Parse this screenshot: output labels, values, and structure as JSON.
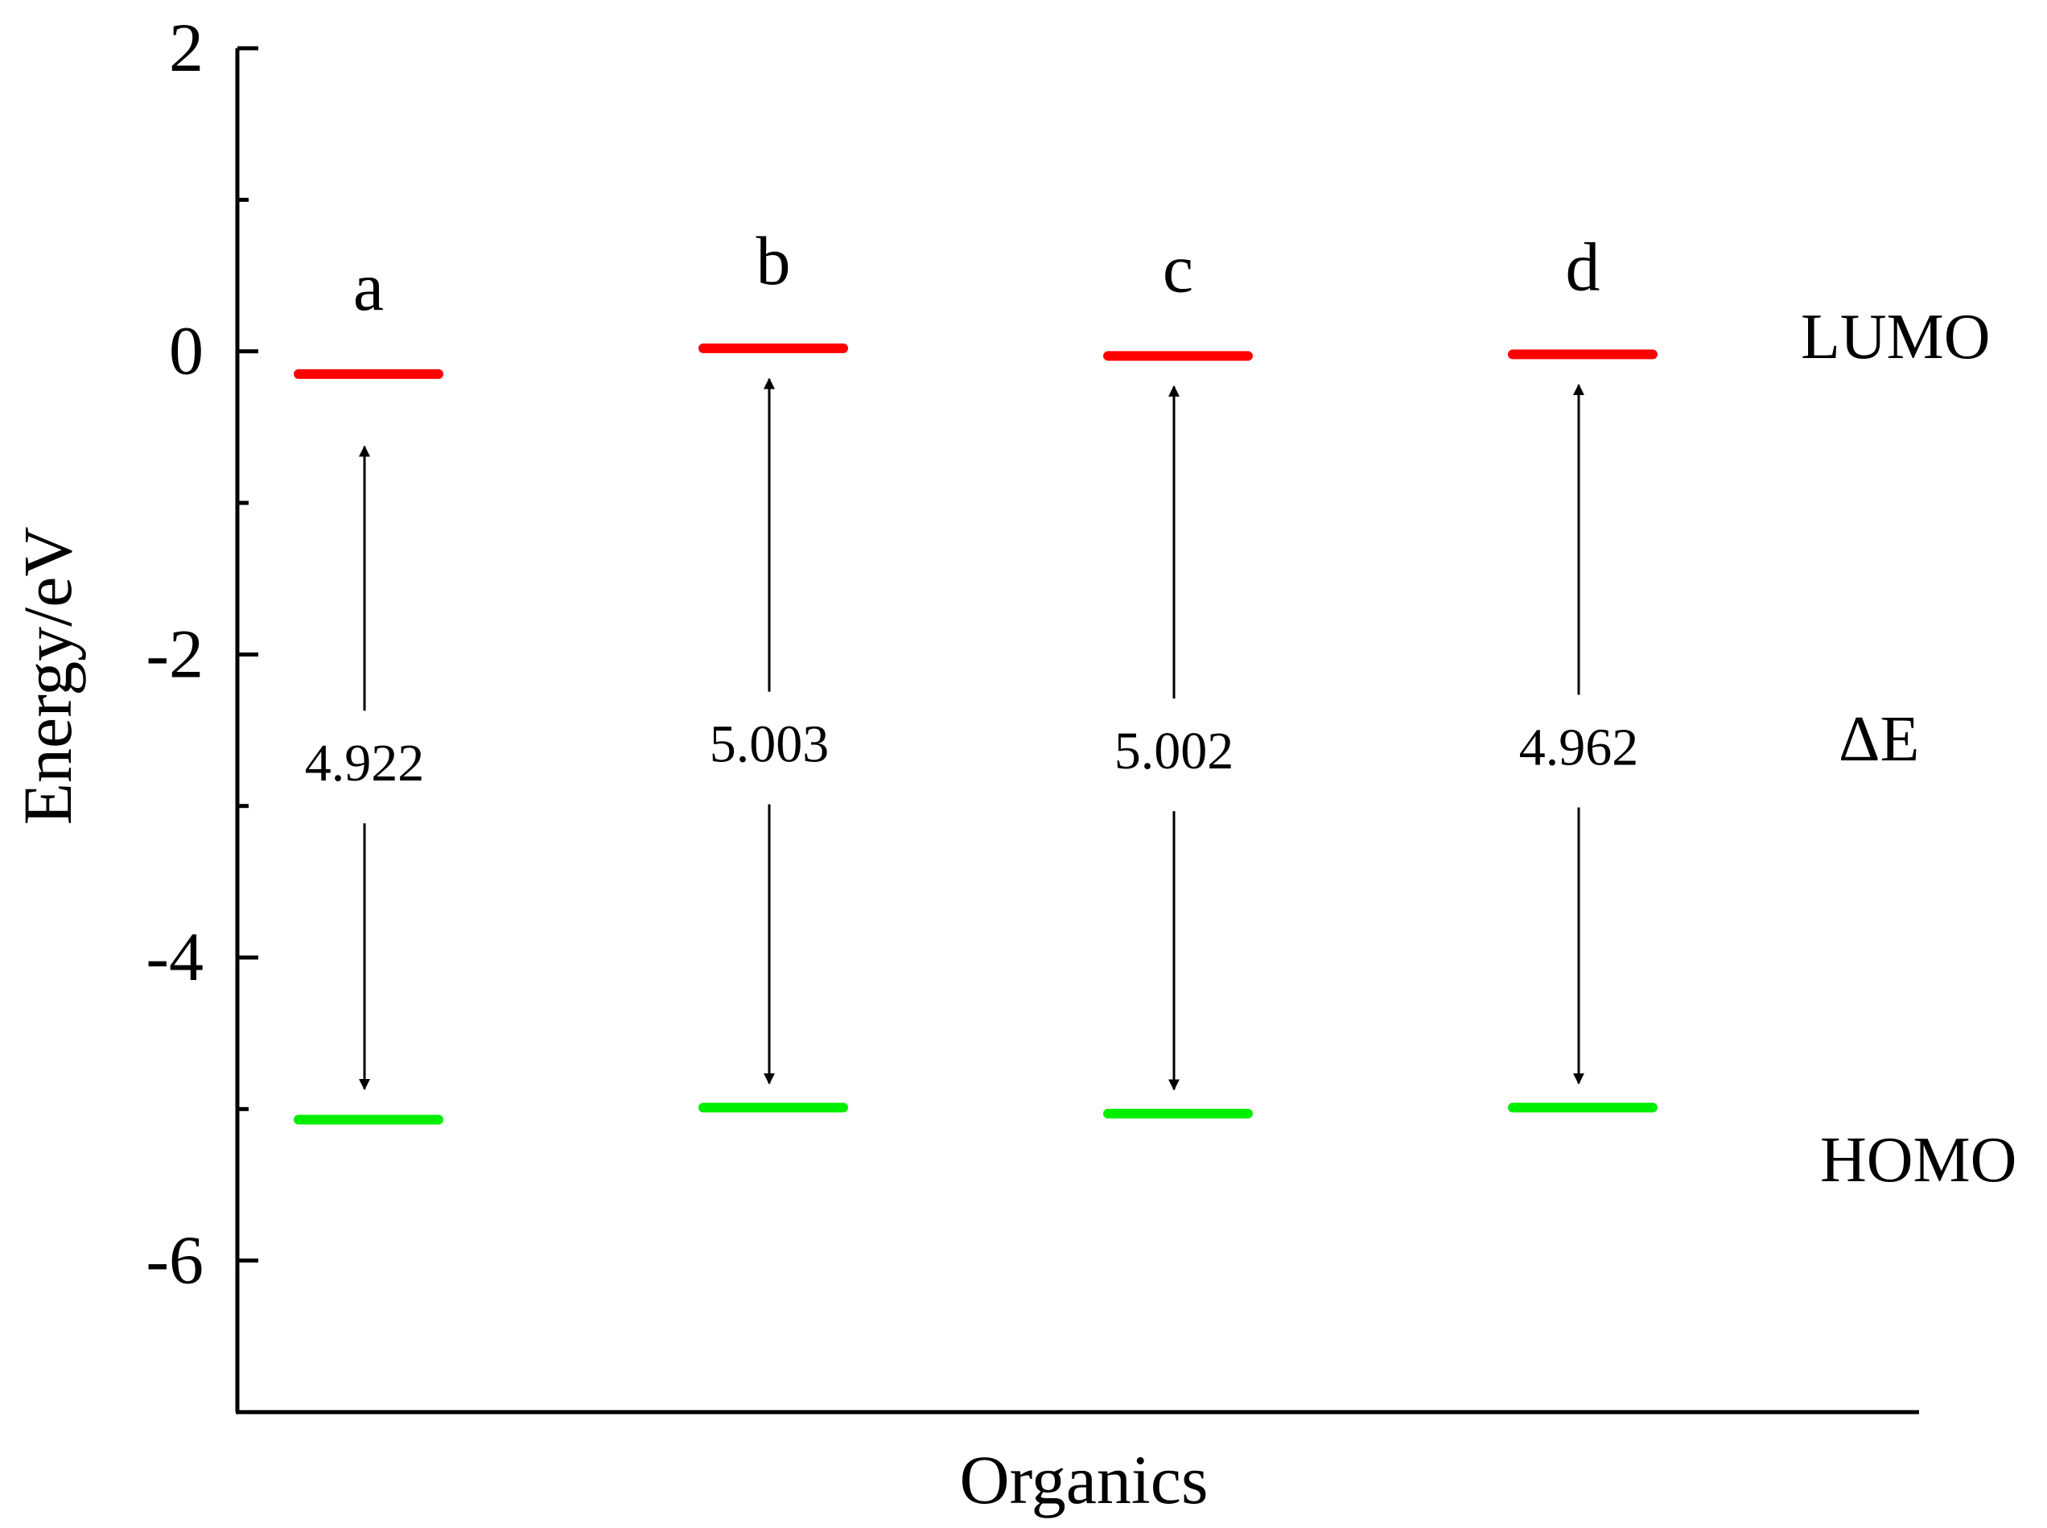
{
  "chart_data": {
    "type": "energy-level diagram",
    "xlabel": "Organics",
    "ylabel": "Energy/eV",
    "ylim": [
      -7,
      2
    ],
    "yticks": [
      2,
      0,
      -2,
      -4,
      -6
    ],
    "ytick_labels": [
      "2",
      "0",
      "-2",
      "-4",
      "-6"
    ],
    "categories": [
      "a",
      "b",
      "c",
      "d"
    ],
    "series": [
      {
        "name": "LUMO",
        "color": "#ff0000",
        "values": [
          -0.15,
          0.02,
          -0.03,
          -0.02
        ]
      },
      {
        "name": "HOMO",
        "color": "#00ee00",
        "values": [
          -5.07,
          -4.99,
          -5.03,
          -4.99
        ]
      }
    ],
    "gaps": {
      "name": "ΔE",
      "labels": [
        "4.922",
        "5.003",
        "5.002",
        "4.962"
      ]
    },
    "grid": false,
    "legend": "right-side labels"
  }
}
